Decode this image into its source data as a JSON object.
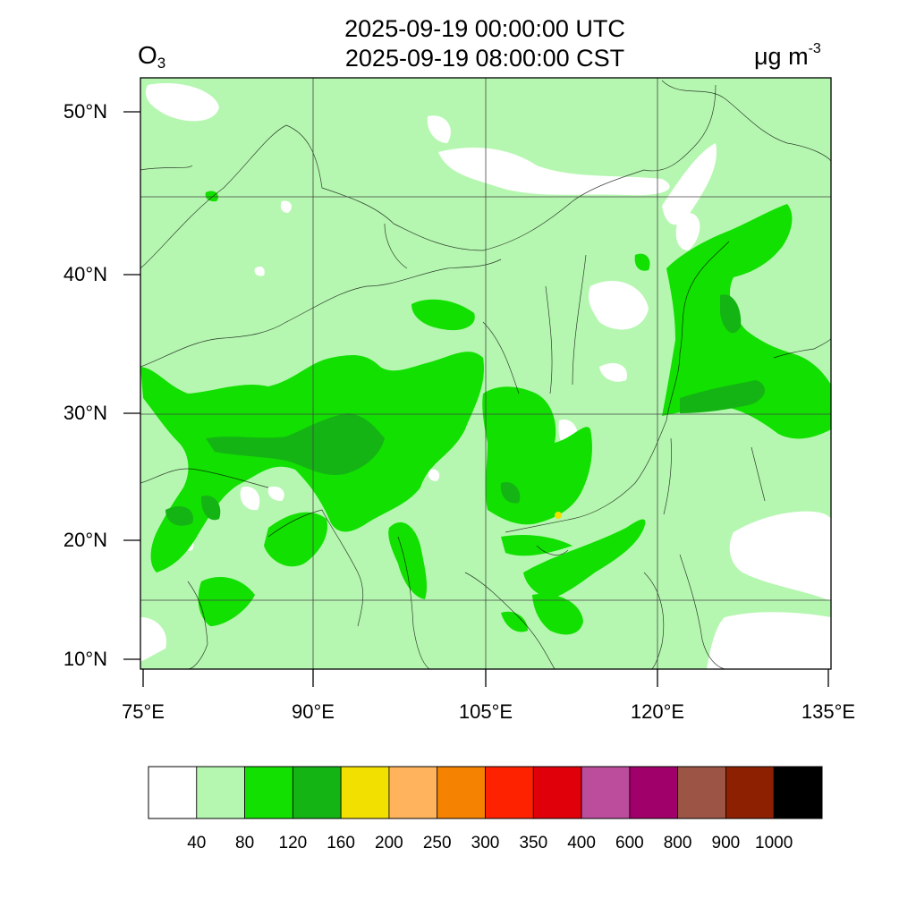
{
  "header": {
    "title_utc": "2025-09-19 00:00:00 UTC",
    "title_cst": "2025-09-19 08:00:00 CST",
    "variable_main": "O",
    "variable_sub": "3",
    "unit_main": "μg m",
    "unit_sup": "-3"
  },
  "map": {
    "lon_range": [
      75,
      135
    ],
    "lat_range": [
      9,
      52
    ],
    "lat_ticks": [
      {
        "value": 50,
        "label": "50°N"
      },
      {
        "value": 40,
        "label": "40°N"
      },
      {
        "value": 30,
        "label": "30°N"
      },
      {
        "value": 20,
        "label": "20°N"
      },
      {
        "value": 10,
        "label": "10°N"
      }
    ],
    "lon_ticks": [
      {
        "value": 75,
        "label": "75°E"
      },
      {
        "value": 90,
        "label": "90°E"
      },
      {
        "value": 105,
        "label": "105°E"
      },
      {
        "value": 120,
        "label": "120°E"
      },
      {
        "value": 135,
        "label": "135°E"
      }
    ],
    "background_level_color": "#b5f7b0"
  },
  "colorbar": {
    "colors": [
      "#ffffff",
      "#b5f7b0",
      "#12e000",
      "#14b414",
      "#f2e000",
      "#ffb35c",
      "#f58200",
      "#ff2200",
      "#e0000a",
      "#bc4d9d",
      "#a0006a",
      "#9c5544",
      "#8c2000",
      "#000000"
    ],
    "labels": [
      "40",
      "80",
      "120",
      "160",
      "200",
      "250",
      "300",
      "350",
      "400",
      "600",
      "800",
      "900",
      "1000"
    ]
  }
}
